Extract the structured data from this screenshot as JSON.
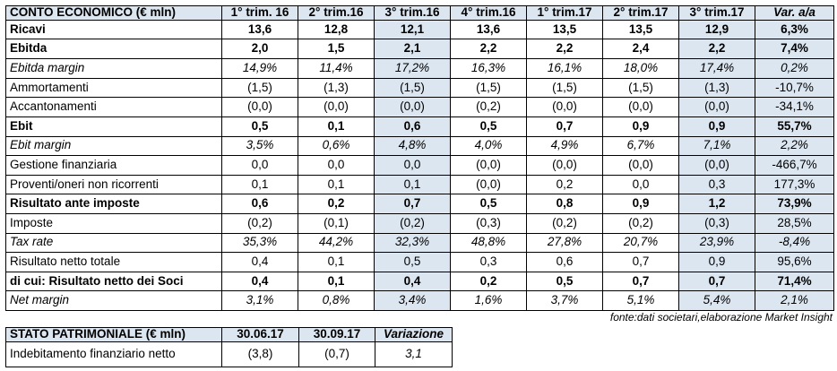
{
  "income_table": {
    "title": "CONTO ECONOMICO (€ mln)",
    "columns": [
      "1° trim. 16",
      "2° trim.16",
      "3° trim.16",
      "4° trim.16",
      "1° trim.17",
      "2° trim.17",
      "3° trim.17",
      "Var. a/a"
    ],
    "italic_columns": [
      7
    ],
    "highlight_columns": [
      2,
      6,
      7
    ],
    "rows": [
      {
        "label": "Ricavi",
        "style": "bold",
        "values": [
          "13,6",
          "12,8",
          "12,1",
          "13,6",
          "13,5",
          "13,5",
          "12,9",
          "6,3%"
        ]
      },
      {
        "label": "Ebitda",
        "style": "bold",
        "values": [
          "2,0",
          "1,5",
          "2,1",
          "2,2",
          "2,2",
          "2,4",
          "2,2",
          "7,4%"
        ]
      },
      {
        "label": "Ebitda margin",
        "style": "italic",
        "values": [
          "14,9%",
          "11,4%",
          "17,2%",
          "16,3%",
          "16,1%",
          "18,0%",
          "17,4%",
          "0,2%"
        ]
      },
      {
        "label": "Ammortamenti",
        "style": "regular",
        "values": [
          "(1,5)",
          "(1,3)",
          "(1,5)",
          "(1,5)",
          "(1,5)",
          "(1,5)",
          "(1,3)",
          "-10,7%"
        ]
      },
      {
        "label": "Accantonamenti",
        "style": "regular",
        "values": [
          "(0,0)",
          "(0,0)",
          "(0,0)",
          "(0,2)",
          "(0,0)",
          "(0,0)",
          "(0,0)",
          "-34,1%"
        ]
      },
      {
        "label": "Ebit",
        "style": "bold",
        "values": [
          "0,5",
          "0,1",
          "0,6",
          "0,5",
          "0,7",
          "0,9",
          "0,9",
          "55,7%"
        ]
      },
      {
        "label": "Ebit margin",
        "style": "italic",
        "values": [
          "3,5%",
          "0,6%",
          "4,8%",
          "4,0%",
          "4,9%",
          "6,7%",
          "7,1%",
          "2,2%"
        ]
      },
      {
        "label": "Gestione finanziaria",
        "style": "regular",
        "values": [
          "0,0",
          "0,0",
          "0,0",
          "(0,0)",
          "(0,0)",
          "(0,0)",
          "(0,0)",
          "-466,7%"
        ]
      },
      {
        "label": "Proventi/oneri non ricorrenti",
        "style": "regular",
        "values": [
          "0,1",
          "0,1",
          "0,1",
          "(0,0)",
          "0,2",
          "0,0",
          "0,3",
          "177,3%"
        ]
      },
      {
        "label": "Risultato ante imposte",
        "style": "bold",
        "values": [
          "0,6",
          "0,2",
          "0,7",
          "0,5",
          "0,8",
          "0,9",
          "1,2",
          "73,9%"
        ]
      },
      {
        "label": "Imposte",
        "style": "regular",
        "values": [
          "(0,2)",
          "(0,1)",
          "(0,2)",
          "(0,3)",
          "(0,2)",
          "(0,2)",
          "(0,3)",
          "28,5%"
        ]
      },
      {
        "label": "Tax rate",
        "style": "italic",
        "values": [
          "35,3%",
          "44,2%",
          "32,3%",
          "48,8%",
          "27,8%",
          "20,7%",
          "23,9%",
          "-8,4%"
        ]
      },
      {
        "label": "Risultato netto totale",
        "style": "regular",
        "values": [
          "0,4",
          "0,1",
          "0,5",
          "0,3",
          "0,6",
          "0,7",
          "0,9",
          "95,6%"
        ]
      },
      {
        "label": "di cui: Risultato netto dei Soci",
        "style": "bold",
        "values": [
          "0,4",
          "0,1",
          "0,4",
          "0,2",
          "0,5",
          "0,7",
          "0,7",
          "71,4%"
        ]
      },
      {
        "label": "Net margin",
        "style": "italic",
        "values": [
          "3,1%",
          "0,8%",
          "3,4%",
          "1,6%",
          "3,7%",
          "5,1%",
          "5,4%",
          "2,1%"
        ]
      }
    ]
  },
  "source_note": "fonte:dati societari,elaborazione Market Insight",
  "balance_table": {
    "title": "STATO PATRIMONIALE (€ mln)",
    "columns": [
      "30.06.17",
      "30.09.17",
      "Variazione"
    ],
    "italic_columns": [
      2
    ],
    "rows": [
      {
        "label": "Indebitamento finanziario netto",
        "style": "regular",
        "values": [
          "(3,8)",
          "(0,7)",
          "3,1"
        ]
      }
    ]
  },
  "colors": {
    "header_fill": "#dce6f1",
    "highlight_fill": "#dce6f1",
    "border": "#000000",
    "text": "#000000",
    "background": "#ffffff"
  }
}
